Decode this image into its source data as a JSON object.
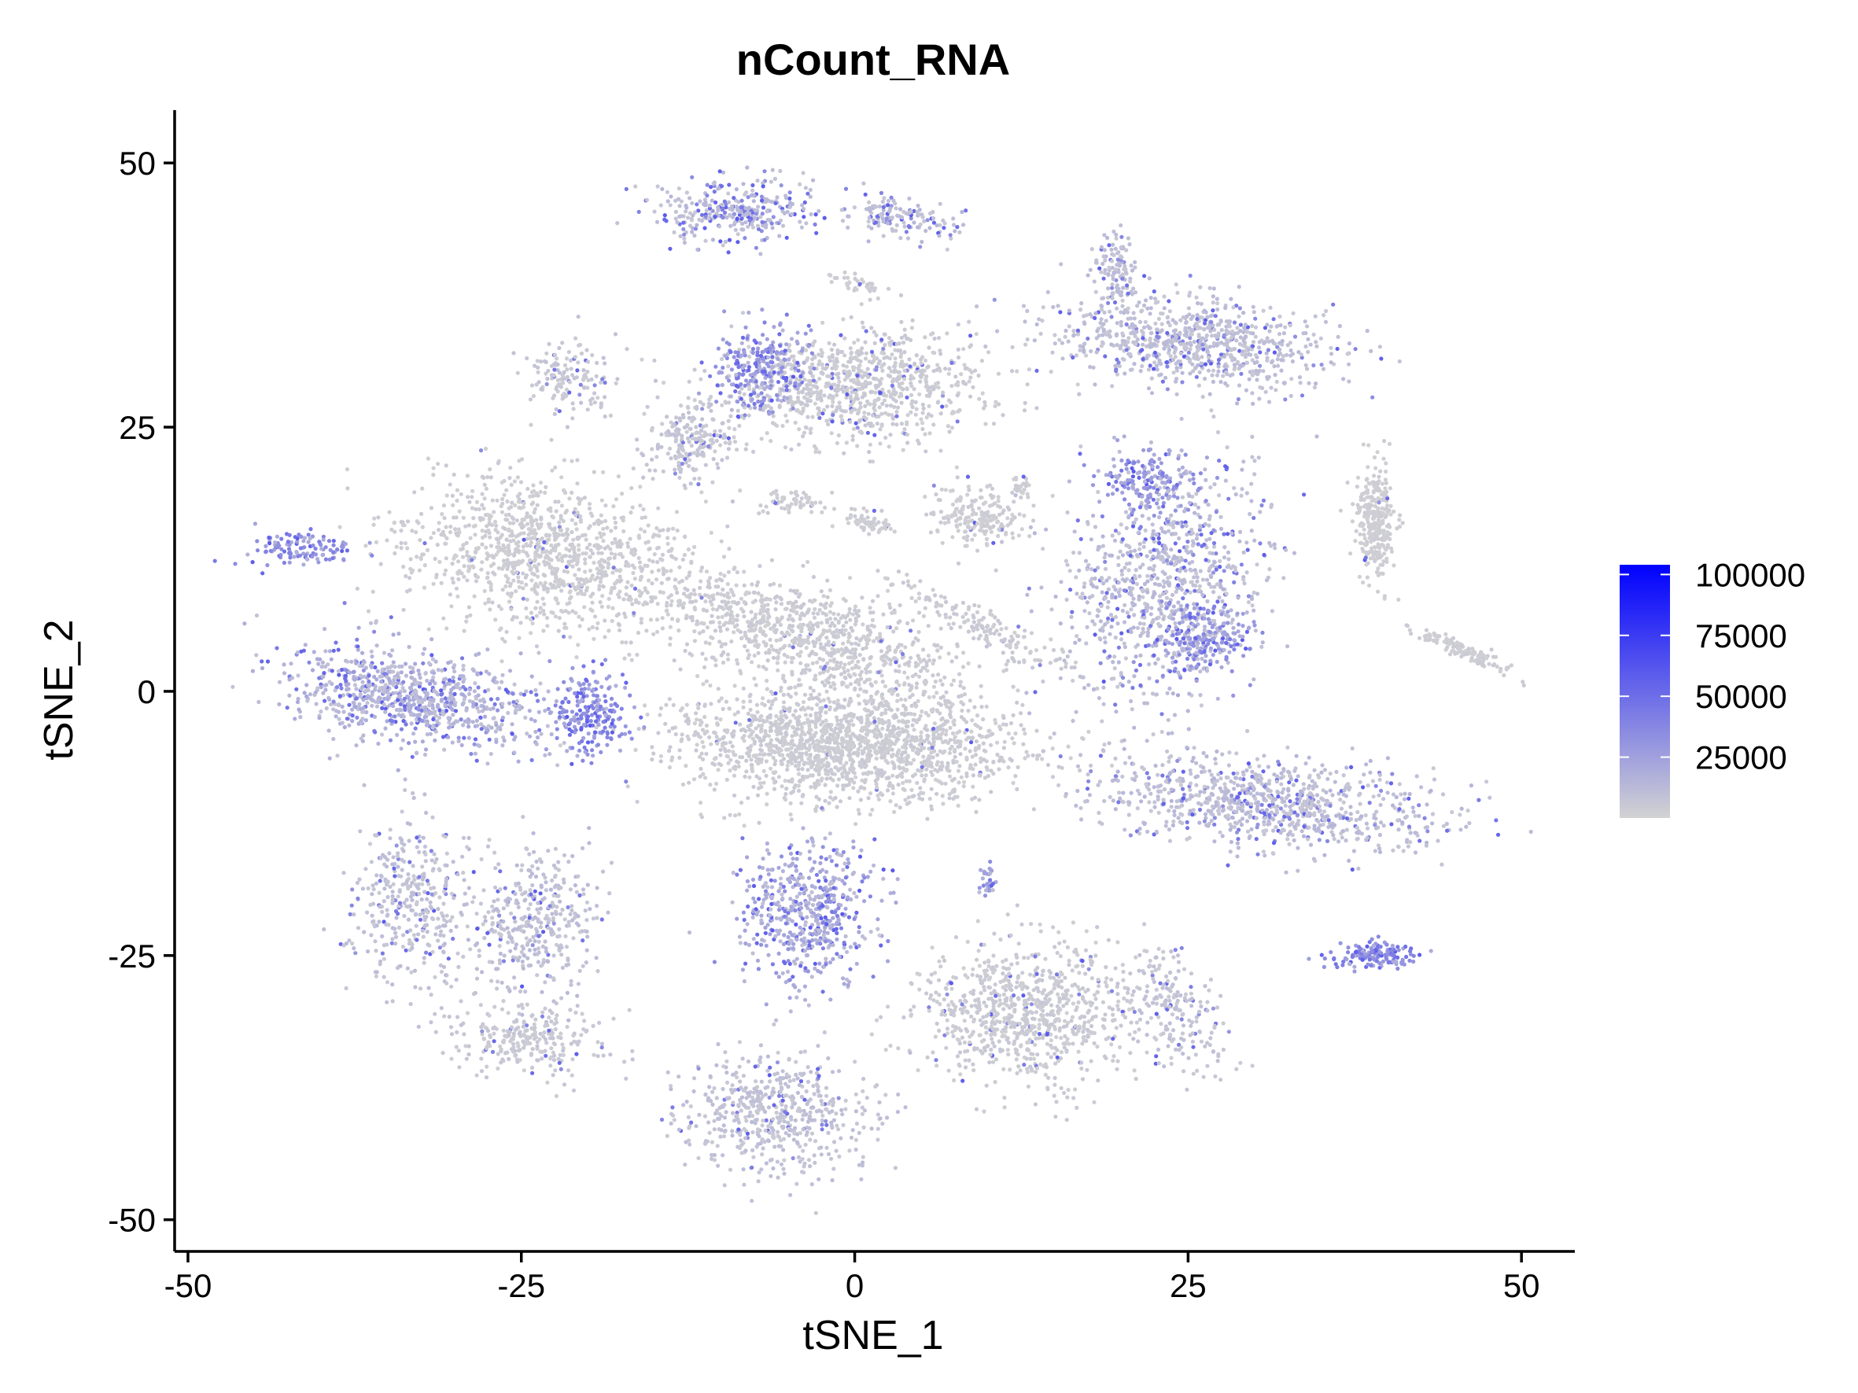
{
  "chart_data": {
    "type": "scatter",
    "title": "nCount_RNA",
    "xlabel": "tSNE_1",
    "ylabel": "tSNE_2",
    "xlim": [
      -51,
      54
    ],
    "ylim": [
      -53,
      55
    ],
    "x_ticks": [
      -50,
      -25,
      0,
      25,
      50
    ],
    "x_tick_labels": [
      "-50",
      "-25",
      "0",
      "25",
      "50"
    ],
    "y_ticks": [
      -50,
      -25,
      0,
      25,
      50
    ],
    "y_tick_labels": [
      "-50",
      "-25",
      "0",
      "25",
      "50"
    ],
    "grid": false,
    "legend": {
      "position": "right",
      "type": "colorbar",
      "breaks": [
        25000,
        50000,
        75000,
        100000
      ],
      "labels": [
        "25000",
        "50000",
        "75000",
        "100000"
      ],
      "range": [
        0,
        104000
      ],
      "low_color": "#d3d3d3",
      "high_color": "#0000ff"
    },
    "clusters": [
      {
        "x": -23,
        "y": 13,
        "sx": 9,
        "sy": 6,
        "n": 1100,
        "angle": -18,
        "value": 3000,
        "hot": 0.02
      },
      {
        "x": -0.5,
        "y": -5,
        "sx": 10.5,
        "sy": 4.5,
        "n": 1700,
        "angle": -3,
        "value": 3500,
        "hot": 0.01
      },
      {
        "x": -4,
        "y": 5.5,
        "sx": 11,
        "sy": 4,
        "n": 900,
        "angle": -22,
        "value": 3500,
        "hot": 0.02
      },
      {
        "x": 10,
        "y": 6,
        "sx": 7,
        "sy": 1.2,
        "n": 160,
        "angle": -33,
        "value": 4000,
        "hot": 0.02
      },
      {
        "x": -33,
        "y": -0.5,
        "sx": 8.5,
        "sy": 3.6,
        "n": 850,
        "angle": -12,
        "value": 14000,
        "hot": 0.2
      },
      {
        "x": -20,
        "y": -2,
        "sx": 2.5,
        "sy": 3.5,
        "n": 220,
        "angle": 0,
        "value": 30000,
        "hot": 0.4
      },
      {
        "x": -41.5,
        "y": 13.5,
        "sx": 3.5,
        "sy": 1.2,
        "n": 120,
        "angle": 0,
        "value": 30000,
        "hot": 0.4
      },
      {
        "x": -9,
        "y": 45.5,
        "sx": 5,
        "sy": 2.5,
        "n": 320,
        "angle": 0,
        "value": 10000,
        "hot": 0.3
      },
      {
        "x": 3,
        "y": 45,
        "sx": 4.5,
        "sy": 1.6,
        "n": 140,
        "angle": -10,
        "value": 10000,
        "hot": 0.3
      },
      {
        "x": 0,
        "y": 29,
        "sx": 8.5,
        "sy": 4.2,
        "n": 900,
        "angle": 4,
        "value": 4000,
        "hot": 0.06
      },
      {
        "x": -7,
        "y": 30.5,
        "sx": 2.8,
        "sy": 3.2,
        "n": 260,
        "angle": 0,
        "value": 25000,
        "hot": 0.35
      },
      {
        "x": 25,
        "y": 33,
        "sx": 9,
        "sy": 3.5,
        "n": 800,
        "angle": -8,
        "value": 9000,
        "hot": 0.15
      },
      {
        "x": 19.5,
        "y": 40,
        "sx": 1.2,
        "sy": 3,
        "n": 110,
        "angle": 0,
        "value": 9000,
        "hot": 0.1
      },
      {
        "x": 23,
        "y": 10,
        "sx": 6,
        "sy": 9,
        "n": 900,
        "angle": -15,
        "value": 10000,
        "hot": 0.2
      },
      {
        "x": 26,
        "y": 5,
        "sx": 3,
        "sy": 3,
        "n": 200,
        "angle": 0,
        "value": 25000,
        "hot": 0.3
      },
      {
        "x": 22,
        "y": 20,
        "sx": 3,
        "sy": 3,
        "n": 180,
        "angle": 0,
        "value": 25000,
        "hot": 0.3
      },
      {
        "x": 39,
        "y": 16,
        "sx": 1.2,
        "sy": 4.5,
        "n": 300,
        "angle": 0,
        "value": 2500,
        "hot": 0.02
      },
      {
        "x": 45.5,
        "y": 4,
        "sx": 3.3,
        "sy": 0.6,
        "n": 130,
        "angle": -30,
        "value": 3000,
        "hot": 0.02
      },
      {
        "x": 31,
        "y": -10.5,
        "sx": 11,
        "sy": 3.5,
        "n": 900,
        "angle": -9,
        "value": 10000,
        "hot": 0.15
      },
      {
        "x": 39,
        "y": -25,
        "sx": 2.5,
        "sy": 0.9,
        "n": 160,
        "angle": 0,
        "value": 30000,
        "hot": 0.4
      },
      {
        "x": -33,
        "y": -20,
        "sx": 4,
        "sy": 7,
        "n": 380,
        "angle": 0,
        "value": 8000,
        "hot": 0.1
      },
      {
        "x": -24,
        "y": -22,
        "sx": 4,
        "sy": 6,
        "n": 380,
        "angle": 0,
        "value": 9000,
        "hot": 0.1
      },
      {
        "x": -25,
        "y": -33,
        "sx": 5,
        "sy": 2.8,
        "n": 260,
        "angle": -10,
        "value": 5000,
        "hot": 0.05
      },
      {
        "x": -3.5,
        "y": -21,
        "sx": 4.2,
        "sy": 5.5,
        "n": 550,
        "angle": 0,
        "value": 17000,
        "hot": 0.3
      },
      {
        "x": 13,
        "y": -30.5,
        "sx": 7,
        "sy": 5.5,
        "n": 850,
        "angle": 0,
        "value": 4000,
        "hot": 0.05
      },
      {
        "x": 24,
        "y": -30,
        "sx": 2.5,
        "sy": 5,
        "n": 200,
        "angle": 25,
        "value": 7000,
        "hot": 0.1
      },
      {
        "x": -6,
        "y": -40,
        "sx": 6,
        "sy": 5,
        "n": 550,
        "angle": 0,
        "value": 8000,
        "hot": 0.1
      },
      {
        "x": -12.5,
        "y": 23.5,
        "sx": 2.5,
        "sy": 3.2,
        "n": 200,
        "angle": 0,
        "value": 6000,
        "hot": 0.1
      },
      {
        "x": -21,
        "y": 30,
        "sx": 2.6,
        "sy": 3,
        "n": 140,
        "angle": 0,
        "value": 6000,
        "hot": 0.1
      },
      {
        "x": 9,
        "y": 16.5,
        "sx": 3,
        "sy": 2.3,
        "n": 200,
        "angle": -15,
        "value": 3000,
        "hot": 0.03
      },
      {
        "x": -5,
        "y": 18,
        "sx": 2,
        "sy": 1,
        "n": 60,
        "angle": 0,
        "value": 3000,
        "hot": 0.02
      },
      {
        "x": 1,
        "y": 16,
        "sx": 2,
        "sy": 0.8,
        "n": 60,
        "angle": -20,
        "value": 3000,
        "hot": 0.02
      },
      {
        "x": 10,
        "y": -18,
        "sx": 0.6,
        "sy": 1.2,
        "n": 30,
        "angle": 0,
        "value": 20000,
        "hot": 0.4
      },
      {
        "x": 12.5,
        "y": 19.5,
        "sx": 0.6,
        "sy": 0.8,
        "n": 25,
        "angle": 0,
        "value": 3000,
        "hot": 0.02
      },
      {
        "x": 0.5,
        "y": 38.5,
        "sx": 2,
        "sy": 0.8,
        "n": 40,
        "angle": -20,
        "value": 3000,
        "hot": 0.02
      }
    ]
  }
}
